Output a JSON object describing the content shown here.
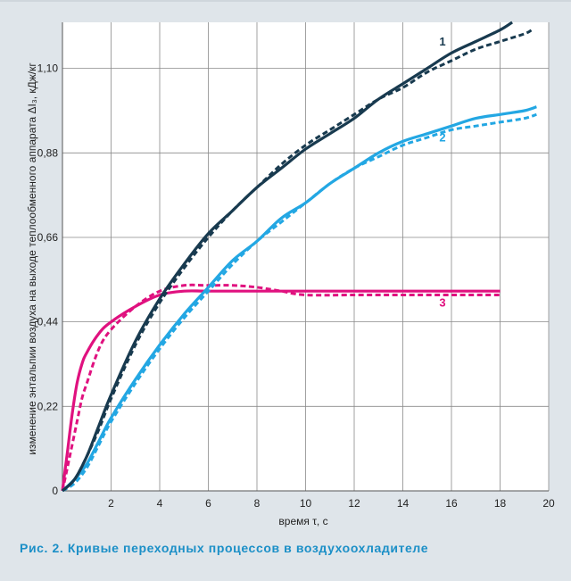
{
  "caption": "Рис. 2. Кривые переходных процессов в воздухоохладителе",
  "chart_data": {
    "type": "line",
    "xlabel": "время τ, с",
    "ylabel": "изменение энтальпии воздуха на выходе теплообменного аппарата ΔI₃, кДж/кг",
    "xlim": [
      0,
      20
    ],
    "ylim": [
      0,
      1.22
    ],
    "x_ticks": [
      "2",
      "4",
      "6",
      "8",
      "10",
      "12",
      "14",
      "16",
      "18",
      "20"
    ],
    "y_ticks": [
      "0",
      "0,22",
      "0,44",
      "0,66",
      "0,88",
      "1,10"
    ],
    "grid": true,
    "colors": {
      "s1": "#183a4f",
      "s2": "#23a7e3",
      "s3": "#e0117f"
    },
    "series": [
      {
        "name": "1",
        "style": "solid",
        "color": "s1",
        "points": [
          [
            0,
            0
          ],
          [
            0.5,
            0.03
          ],
          [
            1,
            0.09
          ],
          [
            1.5,
            0.17
          ],
          [
            2,
            0.25
          ],
          [
            3,
            0.39
          ],
          [
            4,
            0.5
          ],
          [
            5,
            0.59
          ],
          [
            6,
            0.67
          ],
          [
            7,
            0.73
          ],
          [
            8,
            0.79
          ],
          [
            9,
            0.84
          ],
          [
            10,
            0.89
          ],
          [
            11,
            0.93
          ],
          [
            12,
            0.97
          ],
          [
            13,
            1.02
          ],
          [
            14,
            1.06
          ],
          [
            15,
            1.1
          ],
          [
            16,
            1.14
          ],
          [
            17,
            1.17
          ],
          [
            18,
            1.2
          ],
          [
            18.5,
            1.22
          ]
        ]
      },
      {
        "name": "",
        "style": "dashed",
        "color": "s1",
        "points": [
          [
            0,
            0
          ],
          [
            0.5,
            0.03
          ],
          [
            1,
            0.09
          ],
          [
            1.5,
            0.16
          ],
          [
            2,
            0.24
          ],
          [
            3,
            0.38
          ],
          [
            4,
            0.49
          ],
          [
            5,
            0.58
          ],
          [
            6,
            0.66
          ],
          [
            7,
            0.73
          ],
          [
            8,
            0.79
          ],
          [
            9,
            0.85
          ],
          [
            10,
            0.9
          ],
          [
            11,
            0.94
          ],
          [
            12,
            0.98
          ],
          [
            13,
            1.02
          ],
          [
            14,
            1.05
          ],
          [
            15,
            1.09
          ],
          [
            16,
            1.12
          ],
          [
            17,
            1.15
          ],
          [
            18,
            1.17
          ],
          [
            19,
            1.19
          ],
          [
            19.3,
            1.2
          ]
        ]
      },
      {
        "name": "2",
        "style": "solid",
        "color": "s2",
        "points": [
          [
            0,
            0
          ],
          [
            0.5,
            0.03
          ],
          [
            1,
            0.07
          ],
          [
            1.5,
            0.13
          ],
          [
            2,
            0.19
          ],
          [
            3,
            0.29
          ],
          [
            4,
            0.38
          ],
          [
            5,
            0.46
          ],
          [
            6,
            0.53
          ],
          [
            7,
            0.6
          ],
          [
            8,
            0.65
          ],
          [
            9,
            0.71
          ],
          [
            10,
            0.75
          ],
          [
            11,
            0.8
          ],
          [
            12,
            0.84
          ],
          [
            13,
            0.88
          ],
          [
            14,
            0.91
          ],
          [
            15,
            0.93
          ],
          [
            16,
            0.95
          ],
          [
            17,
            0.97
          ],
          [
            18,
            0.98
          ],
          [
            19,
            0.99
          ],
          [
            19.5,
            1.0
          ]
        ]
      },
      {
        "name": "",
        "style": "dashed",
        "color": "s2",
        "points": [
          [
            0,
            0
          ],
          [
            0.5,
            0.02
          ],
          [
            1,
            0.06
          ],
          [
            1.5,
            0.12
          ],
          [
            2,
            0.18
          ],
          [
            3,
            0.28
          ],
          [
            4,
            0.37
          ],
          [
            5,
            0.45
          ],
          [
            6,
            0.52
          ],
          [
            7,
            0.59
          ],
          [
            8,
            0.65
          ],
          [
            9,
            0.7
          ],
          [
            10,
            0.75
          ],
          [
            11,
            0.8
          ],
          [
            12,
            0.84
          ],
          [
            13,
            0.87
          ],
          [
            14,
            0.9
          ],
          [
            15,
            0.92
          ],
          [
            16,
            0.94
          ],
          [
            17,
            0.95
          ],
          [
            18,
            0.96
          ],
          [
            19,
            0.97
          ],
          [
            19.5,
            0.98
          ]
        ]
      },
      {
        "name": "3",
        "style": "solid",
        "color": "s3",
        "points": [
          [
            0,
            0
          ],
          [
            0.2,
            0.1
          ],
          [
            0.4,
            0.2
          ],
          [
            0.6,
            0.28
          ],
          [
            0.8,
            0.33
          ],
          [
            1,
            0.36
          ],
          [
            1.5,
            0.41
          ],
          [
            2,
            0.44
          ],
          [
            3,
            0.48
          ],
          [
            4,
            0.51
          ],
          [
            5,
            0.52
          ],
          [
            6,
            0.52
          ],
          [
            8,
            0.52
          ],
          [
            10,
            0.52
          ],
          [
            12,
            0.52
          ],
          [
            14,
            0.52
          ],
          [
            16,
            0.52
          ],
          [
            18,
            0.52
          ]
        ]
      },
      {
        "name": "",
        "style": "dashed",
        "color": "s3",
        "points": [
          [
            0,
            0
          ],
          [
            0.3,
            0.09
          ],
          [
            0.6,
            0.18
          ],
          [
            0.8,
            0.24
          ],
          [
            1,
            0.28
          ],
          [
            1.5,
            0.37
          ],
          [
            2,
            0.42
          ],
          [
            3,
            0.48
          ],
          [
            4,
            0.52
          ],
          [
            5,
            0.535
          ],
          [
            6,
            0.535
          ],
          [
            7,
            0.535
          ],
          [
            8,
            0.53
          ],
          [
            9,
            0.52
          ],
          [
            10,
            0.51
          ],
          [
            12,
            0.51
          ],
          [
            14,
            0.51
          ],
          [
            16,
            0.51
          ],
          [
            18,
            0.51
          ]
        ]
      }
    ],
    "annotations": [
      {
        "text": "1",
        "x": 15.5,
        "y": 1.16,
        "color": "s1"
      },
      {
        "text": "2",
        "x": 15.5,
        "y": 0.91,
        "color": "s2"
      },
      {
        "text": "3",
        "x": 15.5,
        "y": 0.48,
        "color": "s3"
      }
    ]
  }
}
